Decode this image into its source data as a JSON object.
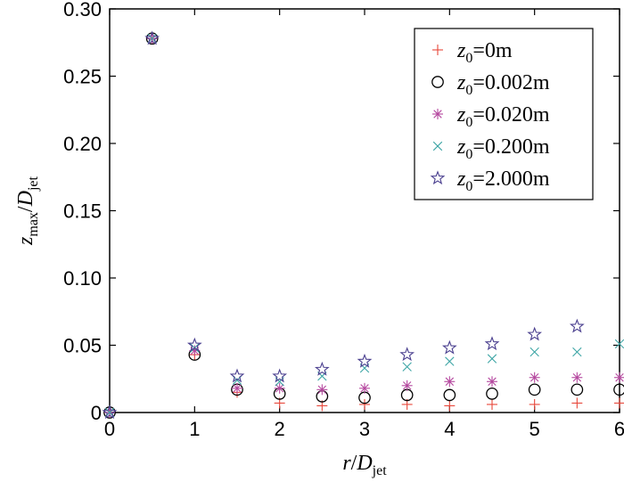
{
  "chart_data": {
    "type": "scatter",
    "xlabel": {
      "var": "r",
      "slash": "/",
      "sym": "D",
      "sub": "jet"
    },
    "ylabel": {
      "var": "z",
      "var_sub": "max",
      "slash": "/",
      "sym": "D",
      "sub": "jet"
    },
    "xlim": [
      0,
      6
    ],
    "ylim": [
      0,
      0.3
    ],
    "xticks": [
      0,
      1,
      2,
      3,
      4,
      5,
      6
    ],
    "xtick_labels": [
      "0",
      "1",
      "2",
      "3",
      "4",
      "5",
      "6"
    ],
    "yticks": [
      0,
      0.05,
      0.1,
      0.15,
      0.2,
      0.25,
      0.3
    ],
    "ytick_labels": [
      "0",
      "0.05",
      "0.10",
      "0.15",
      "0.20",
      "0.25",
      "0.30"
    ],
    "grid": false,
    "legend_position": "top-right",
    "x": [
      0,
      0.5,
      1,
      1.5,
      2,
      2.5,
      3,
      3.5,
      4,
      4.5,
      5,
      5.5,
      6
    ],
    "series": [
      {
        "name": "z0=0m",
        "label_var": "z",
        "label_sub": "0",
        "label_value": "=0m",
        "marker": "plus",
        "color": "#e8473a",
        "values": [
          0,
          0.278,
          0.043,
          0.015,
          0.007,
          0.005,
          0.006,
          0.006,
          0.005,
          0.006,
          0.006,
          0.007,
          0.007
        ]
      },
      {
        "name": "z0=0.002m",
        "label_var": "z",
        "label_sub": "0",
        "label_value": "=0.002m",
        "marker": "circle",
        "color": "#000000",
        "values": [
          0,
          0.278,
          0.043,
          0.017,
          0.014,
          0.012,
          0.011,
          0.013,
          0.013,
          0.014,
          0.017,
          0.017,
          0.017
        ]
      },
      {
        "name": "z0=0.020m",
        "label_var": "z",
        "label_sub": "0",
        "label_value": "=0.020m",
        "marker": "asterisk",
        "color": "#b5489f",
        "values": [
          0,
          0.278,
          0.046,
          0.018,
          0.018,
          0.017,
          0.018,
          0.02,
          0.023,
          0.023,
          0.026,
          0.026,
          0.026
        ]
      },
      {
        "name": "z0=0.200m",
        "label_var": "z",
        "label_sub": "0",
        "label_value": "=0.200m",
        "marker": "cross",
        "color": "#3fa6a6",
        "values": [
          0,
          0.278,
          0.048,
          0.024,
          0.023,
          0.027,
          0.033,
          0.034,
          0.038,
          0.04,
          0.045,
          0.045,
          0.051
        ]
      },
      {
        "name": "z0=2.000m",
        "label_var": "z",
        "label_sub": "0",
        "label_value": "=2.000m",
        "marker": "star",
        "color": "#4a3f8f",
        "values": [
          0,
          0.278,
          0.05,
          0.027,
          0.027,
          0.032,
          0.038,
          0.043,
          0.048,
          0.051,
          0.058,
          0.064,
          null
        ]
      }
    ]
  }
}
